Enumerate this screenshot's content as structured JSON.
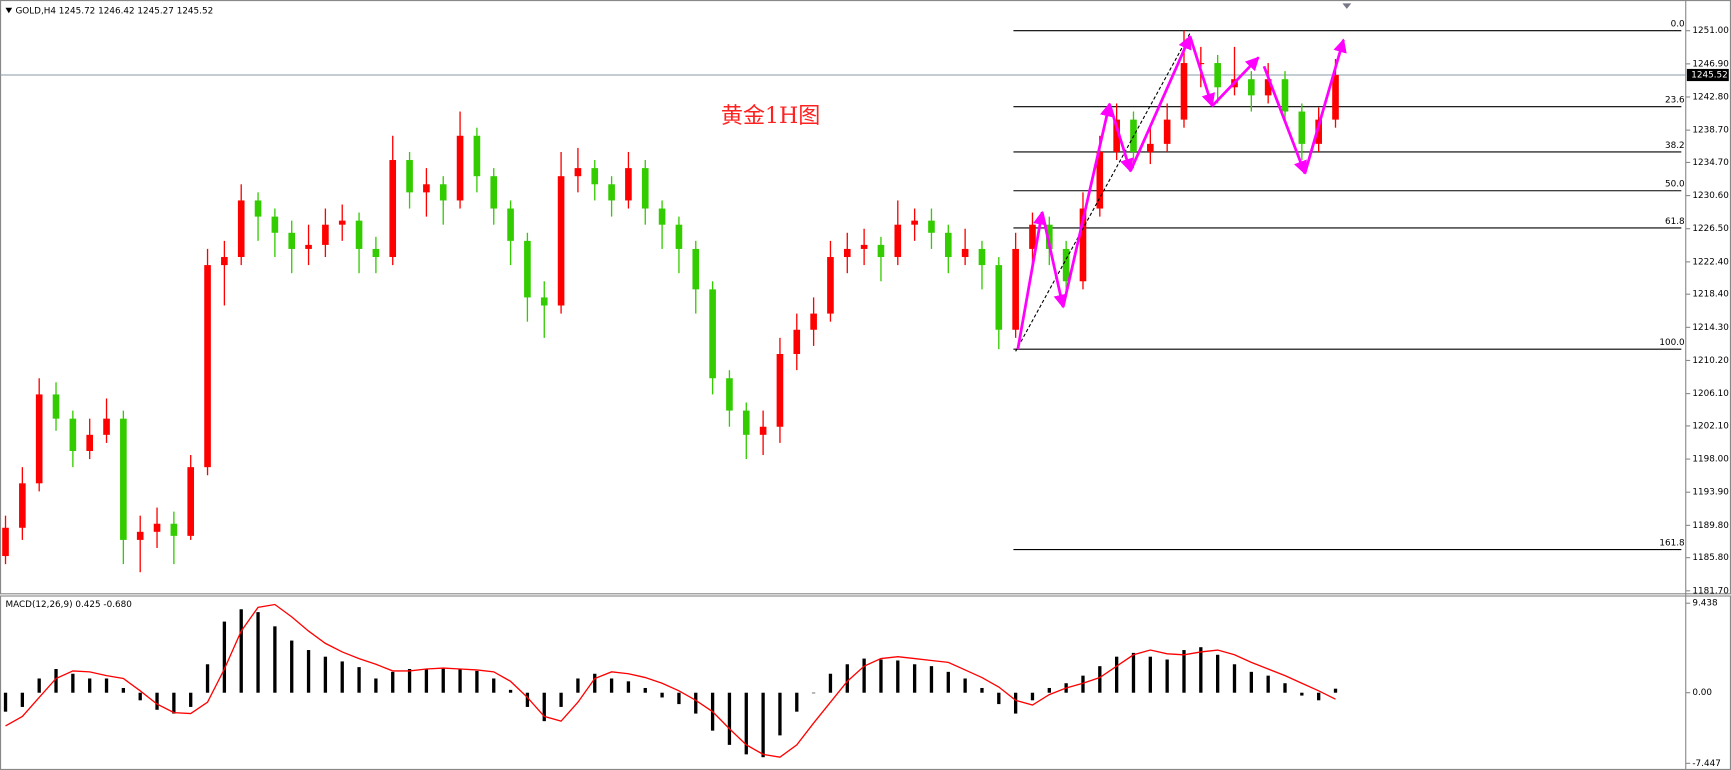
{
  "chart_data": [
    {
      "type": "candlestick",
      "header": "GOLD,H4  1245.72 1246.42 1245.27 1245.52",
      "annotation": "黄金1H图",
      "up_color": "#ff0000",
      "down_color": "#33cc00",
      "open": [
        1186,
        1189.5,
        1195,
        1206,
        1203,
        1199,
        1201,
        1203,
        1188,
        1189,
        1190,
        1188.5,
        1197,
        1222,
        1223,
        1230,
        1228,
        1226,
        1224,
        1224.5,
        1227,
        1227.5,
        1224,
        1223,
        1235,
        1231,
        1232,
        1230,
        1238,
        1233,
        1229,
        1225,
        1218,
        1217,
        1233,
        1234,
        1232,
        1230,
        1234,
        1229,
        1227,
        1224,
        1219,
        1208,
        1204,
        1201,
        1202,
        1211,
        1214,
        1216,
        1223,
        1224,
        1224.5,
        1223,
        1227,
        1227.5,
        1226,
        1223,
        1224,
        1222,
        1214,
        1224,
        1227,
        1224,
        1220,
        1229,
        1236,
        1240,
        1236,
        1237,
        1240,
        1247,
        1247,
        1244,
        1245,
        1243,
        1245,
        1241,
        1237,
        1240
      ],
      "high": [
        1191,
        1197,
        1208,
        1207.5,
        1204,
        1203,
        1205.5,
        1204,
        1191,
        1192,
        1191.5,
        1198.5,
        1224,
        1225,
        1232,
        1231,
        1229,
        1227.5,
        1227,
        1229,
        1229.5,
        1228.5,
        1225.5,
        1238,
        1236,
        1234,
        1233,
        1241,
        1239,
        1234,
        1230,
        1226,
        1220,
        1236,
        1236.5,
        1235,
        1233,
        1236,
        1235,
        1230,
        1228,
        1225,
        1220,
        1209,
        1205,
        1204,
        1213,
        1216,
        1218,
        1225,
        1226,
        1226.5,
        1225.5,
        1230,
        1229,
        1229,
        1227,
        1226.5,
        1225,
        1223,
        1226,
        1228.5,
        1228,
        1225,
        1231,
        1238,
        1242,
        1241,
        1239,
        1242,
        1251,
        1249,
        1248,
        1249,
        1246,
        1247,
        1246,
        1242,
        1241.5,
        1247.5
      ],
      "low": [
        1185,
        1188,
        1194,
        1201.5,
        1197,
        1198,
        1200,
        1185,
        1184,
        1187,
        1185,
        1188,
        1196,
        1217,
        1222,
        1225,
        1223,
        1221,
        1222,
        1223,
        1225,
        1221,
        1221,
        1222,
        1229,
        1228,
        1227,
        1229,
        1231,
        1227,
        1222,
        1215,
        1213,
        1216,
        1231,
        1230,
        1228,
        1229,
        1227,
        1224,
        1221,
        1216,
        1206,
        1202,
        1198,
        1198.5,
        1200,
        1209,
        1212,
        1215,
        1221,
        1222,
        1220,
        1222,
        1225,
        1224,
        1221,
        1222,
        1219,
        1211.6,
        1213,
        1222,
        1222,
        1218,
        1219,
        1228,
        1235,
        1234,
        1234.5,
        1236,
        1239,
        1244,
        1242,
        1243,
        1241,
        1242,
        1240,
        1235,
        1236,
        1239
      ],
      "close": [
        1189.5,
        1195,
        1206,
        1203,
        1199,
        1201,
        1203,
        1188,
        1189,
        1190,
        1188.5,
        1197,
        1222,
        1223,
        1230,
        1228,
        1226,
        1224,
        1224.5,
        1227,
        1227.5,
        1224,
        1223,
        1235,
        1231,
        1232,
        1230,
        1238,
        1233,
        1229,
        1225,
        1218,
        1217,
        1233,
        1234,
        1232,
        1230,
        1234,
        1229,
        1227,
        1224,
        1219,
        1208,
        1204,
        1201,
        1202,
        1211,
        1214,
        1216,
        1223,
        1224,
        1224.5,
        1223,
        1227,
        1227.5,
        1226,
        1223,
        1224,
        1222,
        1214,
        1224,
        1227,
        1224,
        1220,
        1229,
        1236,
        1240,
        1236,
        1237,
        1240,
        1247,
        1247,
        1244,
        1245,
        1243,
        1245,
        1241,
        1237,
        1240,
        1245.52
      ],
      "ylim": [
        1181.4,
        1254.8
      ],
      "yticks": [
        {
          "value": 1251.0,
          "label": "1251.00"
        },
        {
          "value": 1246.9,
          "label": "1246.90"
        },
        {
          "value": 1242.8,
          "label": "1242.80"
        },
        {
          "value": 1238.7,
          "label": "1238.70"
        },
        {
          "value": 1234.7,
          "label": "1234.70"
        },
        {
          "value": 1230.6,
          "label": "1230.60"
        },
        {
          "value": 1226.5,
          "label": "1226.50"
        },
        {
          "value": 1222.4,
          "label": "1222.40"
        },
        {
          "value": 1218.4,
          "label": "1218.40"
        },
        {
          "value": 1214.3,
          "label": "1214.30"
        },
        {
          "value": 1210.2,
          "label": "1210.20"
        },
        {
          "value": 1206.1,
          "label": "1206.10"
        },
        {
          "value": 1202.1,
          "label": "1202.10"
        },
        {
          "value": 1198.0,
          "label": "1198.00"
        },
        {
          "value": 1193.9,
          "label": "1193.90"
        },
        {
          "value": 1189.8,
          "label": "1189.80"
        },
        {
          "value": 1185.8,
          "label": "1185.80"
        },
        {
          "value": 1181.7,
          "label": "1181.70"
        }
      ],
      "current_price": 1245.52,
      "fibonacci": {
        "labels": [
          "0.0",
          "23.6",
          "38.2",
          "50.0",
          "61.8",
          "100.0",
          "161.8"
        ],
        "prices": [
          1251.0,
          1241.6,
          1236.0,
          1231.2,
          1226.6,
          1211.6,
          1186.8
        ]
      }
    },
    {
      "type": "macd",
      "label": "MACD(12,26,9) 0.425 -0.680",
      "histogram": [
        -2,
        -1.5,
        1.5,
        2.5,
        2,
        1.5,
        1.5,
        0.5,
        -0.8,
        -1.8,
        -2.2,
        -1.5,
        3,
        7.5,
        8.8,
        8.5,
        7,
        5.5,
        4.5,
        3.8,
        3.3,
        2.7,
        1.5,
        2.2,
        2.5,
        2.5,
        2.6,
        2.5,
        2.3,
        1.5,
        0.3,
        -1.5,
        -3,
        -1.5,
        1.5,
        2,
        1.5,
        1.2,
        0.5,
        -0.5,
        -1.2,
        -2.2,
        -4,
        -5.5,
        -6.5,
        -6.8,
        -4.5,
        -2,
        0,
        2,
        3,
        3.6,
        3.5,
        3.4,
        3,
        2.8,
        2.2,
        1.5,
        0.5,
        -1.2,
        -2.2,
        -0.8,
        0.5,
        1,
        1.8,
        2.8,
        3.8,
        4.2,
        3.8,
        3.5,
        4.5,
        4.8,
        4,
        3,
        2.2,
        1.8,
        1,
        -0.3,
        -0.8,
        0.425
      ],
      "signal": [
        -3.5,
        -2.5,
        -0.5,
        1.5,
        2.3,
        2.2,
        1.8,
        1.5,
        0.2,
        -1.2,
        -2.1,
        -2.2,
        -1,
        2.5,
        6.5,
        9,
        9.3,
        8,
        6.5,
        5.2,
        4.3,
        3.6,
        3,
        2.3,
        2.3,
        2.5,
        2.6,
        2.5,
        2.4,
        2.2,
        1.2,
        -0.5,
        -2.5,
        -3,
        -1,
        1.5,
        2.2,
        2,
        1.6,
        1,
        0.2,
        -0.8,
        -2,
        -3.8,
        -5.5,
        -6.5,
        -6.8,
        -5.5,
        -3.2,
        -1,
        1.2,
        2.8,
        3.6,
        3.8,
        3.6,
        3.4,
        3.2,
        2.4,
        1.6,
        0.6,
        -0.8,
        -1.3,
        -0.2,
        0.5,
        1,
        1.6,
        2.8,
        4,
        4.5,
        4.1,
        4,
        4.3,
        4.5,
        4,
        3.2,
        2.5,
        1.8,
        1,
        0.2,
        -0.68
      ],
      "histogram_color": "#000000",
      "signal_color": "#ff0000",
      "ylim": [
        -8.15,
        10.14
      ],
      "yticks": [
        {
          "value": 9.438,
          "label": "9.438"
        },
        {
          "value": 0,
          "label": "0.00"
        },
        {
          "value": -7.447,
          "label": "-7.447"
        }
      ]
    }
  ]
}
